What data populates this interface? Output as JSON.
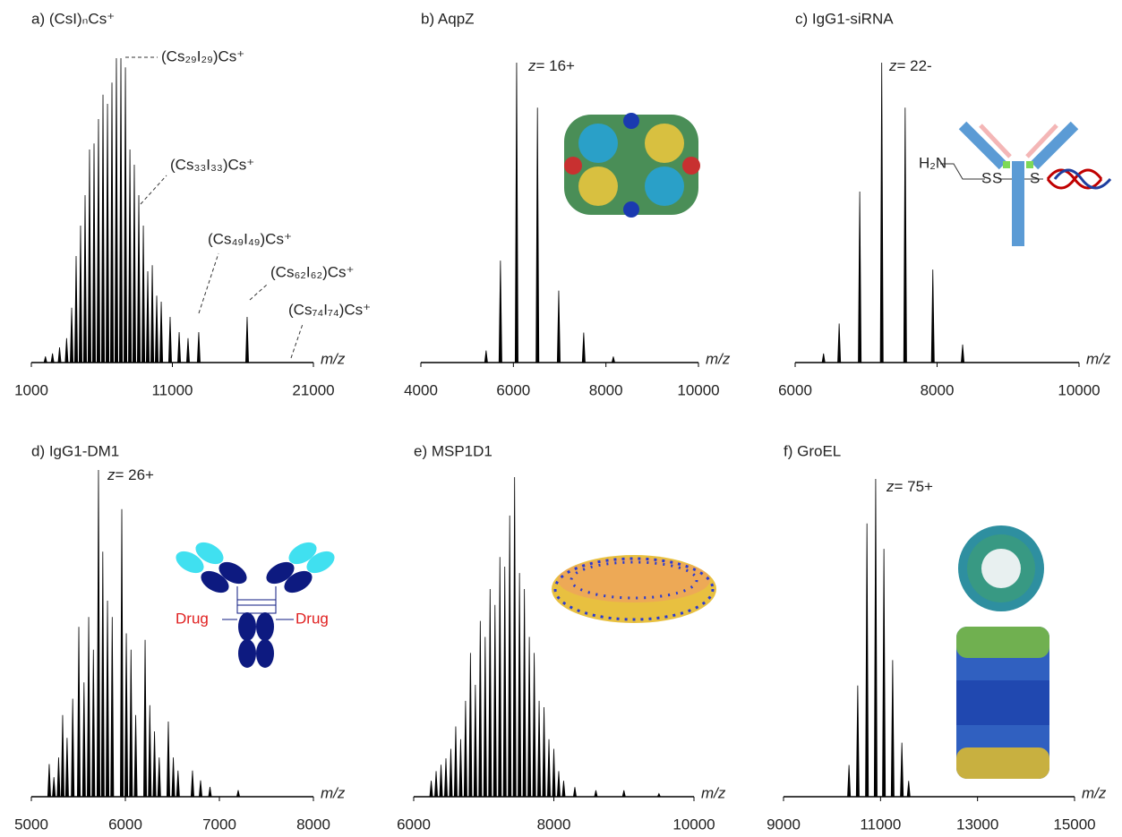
{
  "chart_data": [
    {
      "type": "bar",
      "title": "a) (CsI)ₙCs⁺",
      "xlabel": "m/z",
      "color": "#000000",
      "xlim": [
        1000,
        21000
      ],
      "xticks": [
        1000,
        11000,
        21000
      ],
      "ylim": [
        0,
        100
      ],
      "x": [
        2000,
        2500,
        3000,
        3500,
        3860,
        4175,
        4490,
        4810,
        5125,
        5445,
        5760,
        6080,
        6400,
        6715,
        7030,
        7350,
        7670,
        7990,
        8300,
        8620,
        8940,
        9255,
        9575,
        9890,
        10210,
        10840,
        11480,
        12110,
        12870,
        16300
      ],
      "values": [
        2,
        3,
        5,
        8,
        18,
        35,
        45,
        55,
        70,
        72,
        80,
        88,
        85,
        92,
        100,
        100,
        97,
        70,
        65,
        55,
        45,
        30,
        32,
        22,
        20,
        15,
        10,
        8,
        10,
        15
      ],
      "annotations": [
        "(Cs₂₉I₂₉)Cs⁺",
        "(Cs₃₃I₃₃)Cs⁺",
        "(Cs₄₉I₄₉)Cs⁺",
        "(Cs₆₂I₆₂)Cs⁺",
        "(Cs₇₄I₇₄)Cs⁺"
      ]
    },
    {
      "type": "bar",
      "title": "b) AqpZ",
      "xlabel": "m/z",
      "color": "#000000",
      "xlim": [
        4000,
        10000
      ],
      "xticks": [
        4000,
        6000,
        8000,
        10000
      ],
      "ylim": [
        0,
        100
      ],
      "x": [
        5410,
        5720,
        6070,
        6520,
        6980,
        7520,
        8160
      ],
      "values": [
        4,
        34,
        100,
        85,
        24,
        10,
        2
      ],
      "annotations": [
        "z= 16+"
      ]
    },
    {
      "type": "bar",
      "title": "c) IgG1-siRNA",
      "xlabel": "m/z",
      "color": "#000000",
      "xlim": [
        6000,
        10000
      ],
      "xticks": [
        6000,
        8000,
        10000
      ],
      "ylim": [
        0,
        100
      ],
      "x": [
        6400,
        6620,
        6910,
        7220,
        7550,
        7940,
        8360
      ],
      "values": [
        3,
        13,
        57,
        100,
        85,
        31,
        6
      ],
      "annotations": [
        "z= 22-"
      ],
      "inset_labels": [
        "H₂N",
        "S",
        "S",
        "S"
      ]
    },
    {
      "type": "bar",
      "title": "d) IgG1-DM1",
      "xlabel": "m/z",
      "color": "#000000",
      "xlim": [
        5000,
        8000
      ],
      "xticks": [
        5000,
        6000,
        7000,
        8000
      ],
      "ylim": [
        0,
        100
      ],
      "x": [
        5190,
        5240,
        5290,
        5333,
        5380,
        5440,
        5505,
        5560,
        5610,
        5660,
        5714,
        5760,
        5810,
        5860,
        5962,
        6010,
        6060,
        6110,
        6210,
        6260,
        6310,
        6360,
        6457,
        6510,
        6560,
        6714,
        6800,
        6900,
        7200
      ],
      "values": [
        10,
        6,
        12,
        25,
        18,
        30,
        52,
        35,
        55,
        45,
        100,
        75,
        60,
        55,
        88,
        50,
        45,
        25,
        48,
        28,
        20,
        12,
        23,
        12,
        8,
        8,
        5,
        3,
        2
      ],
      "annotations": [
        "z= 26+"
      ],
      "inset_labels": [
        "Drug",
        "Drug"
      ]
    },
    {
      "type": "bar",
      "title": "e) MSP1D1",
      "xlabel": "m/z",
      "color": "#000000",
      "xlim": [
        6000,
        10000
      ],
      "xticks": [
        6000,
        8000,
        10000
      ],
      "ylim": [
        0,
        100
      ],
      "x": [
        6250,
        6320,
        6390,
        6460,
        6530,
        6600,
        6670,
        6740,
        6810,
        6880,
        6950,
        7020,
        7090,
        7160,
        7230,
        7300,
        7370,
        7440,
        7510,
        7580,
        7650,
        7720,
        7790,
        7860,
        7930,
        8000,
        8070,
        8140,
        8300,
        8600,
        9000,
        9500
      ],
      "values": [
        5,
        8,
        10,
        12,
        15,
        22,
        18,
        30,
        45,
        35,
        55,
        50,
        65,
        60,
        75,
        72,
        88,
        100,
        70,
        65,
        50,
        45,
        30,
        28,
        18,
        15,
        8,
        5,
        3,
        2,
        2,
        1
      ]
    },
    {
      "type": "bar",
      "title": "f) GroEL",
      "xlabel": "m/z",
      "color": "#000000",
      "xlim": [
        9000,
        15000
      ],
      "xticks": [
        9000,
        11000,
        13000,
        15000
      ],
      "ylim": [
        0,
        100
      ],
      "x": [
        10350,
        10530,
        10720,
        10900,
        11070,
        11250,
        11440,
        11580
      ],
      "values": [
        10,
        35,
        86,
        100,
        78,
        43,
        17,
        5
      ],
      "annotations": [
        "z= 75+"
      ]
    }
  ]
}
